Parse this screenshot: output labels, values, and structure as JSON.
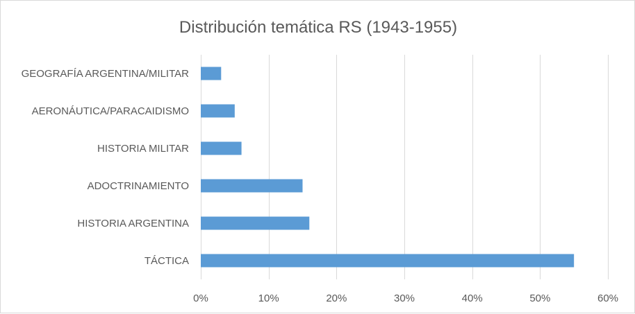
{
  "chart_data": {
    "type": "bar",
    "orientation": "horizontal",
    "title": "Distribución temática RS (1943-1955)",
    "categories": [
      "GEOGRAFÍA ARGENTINA/MILITAR",
      "AERONÁUTICA/PARACAIDISMO",
      "HISTORIA MILITAR",
      "ADOCTRINAMIENTO",
      "HISTORIA ARGENTINA",
      "TÁCTICA"
    ],
    "values": [
      3,
      5,
      6,
      15,
      16,
      55
    ],
    "xlim": [
      0,
      60
    ],
    "x_ticks": [
      "0%",
      "10%",
      "20%",
      "30%",
      "40%",
      "50%",
      "60%"
    ],
    "grid": true,
    "legend": "none",
    "bar_color": "#5b9bd5"
  }
}
